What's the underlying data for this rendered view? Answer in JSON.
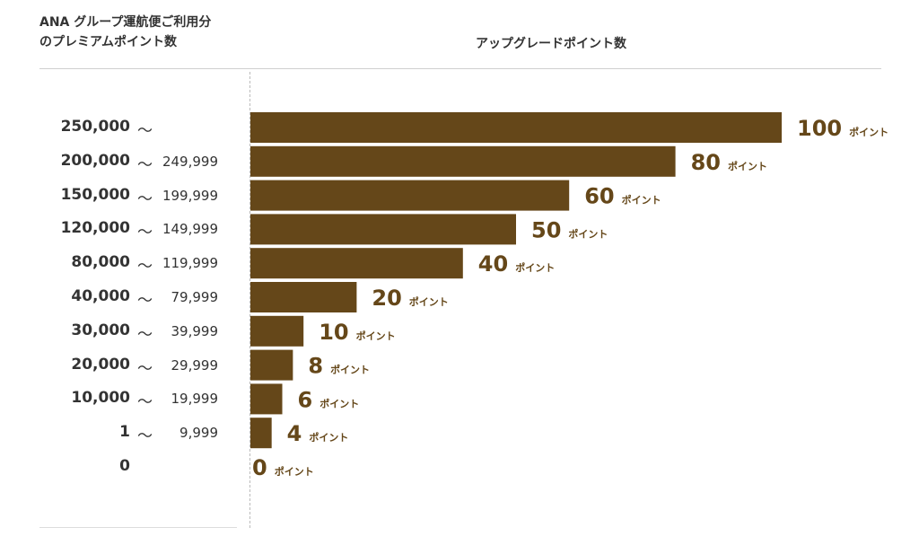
{
  "header": {
    "left_line1": "ANA グループ運航便ご利用分",
    "left_line2": "のプレミアムポイント数",
    "right": "アップグレードポイント数"
  },
  "colors": {
    "bar": "#654719",
    "value_text": "#654719",
    "rule": "#d0d0d0"
  },
  "chart_data": {
    "type": "bar",
    "orientation": "horizontal",
    "title": "",
    "xlabel": "アップグレードポイント数",
    "ylabel": "ANA グループ運航便ご利用分のプレミアムポイント数",
    "xlim": [
      0,
      100
    ],
    "unit_label": "ポイント",
    "categories": [
      {
        "lo": "250,000",
        "tilde": "～",
        "hi": ""
      },
      {
        "lo": "200,000",
        "tilde": "～",
        "hi": "249,999"
      },
      {
        "lo": "150,000",
        "tilde": "～",
        "hi": "199,999"
      },
      {
        "lo": "120,000",
        "tilde": "～",
        "hi": "149,999"
      },
      {
        "lo": "80,000",
        "tilde": "～",
        "hi": "119,999"
      },
      {
        "lo": "40,000",
        "tilde": "～",
        "hi": "79,999"
      },
      {
        "lo": "30,000",
        "tilde": "～",
        "hi": "39,999"
      },
      {
        "lo": "20,000",
        "tilde": "～",
        "hi": "29,999"
      },
      {
        "lo": "10,000",
        "tilde": "～",
        "hi": "19,999"
      },
      {
        "lo": "1",
        "tilde": "～",
        "hi": "9,999"
      },
      {
        "lo": "0",
        "tilde": "",
        "hi": ""
      }
    ],
    "values": [
      100,
      80,
      60,
      50,
      40,
      20,
      10,
      8,
      6,
      4,
      0
    ]
  }
}
